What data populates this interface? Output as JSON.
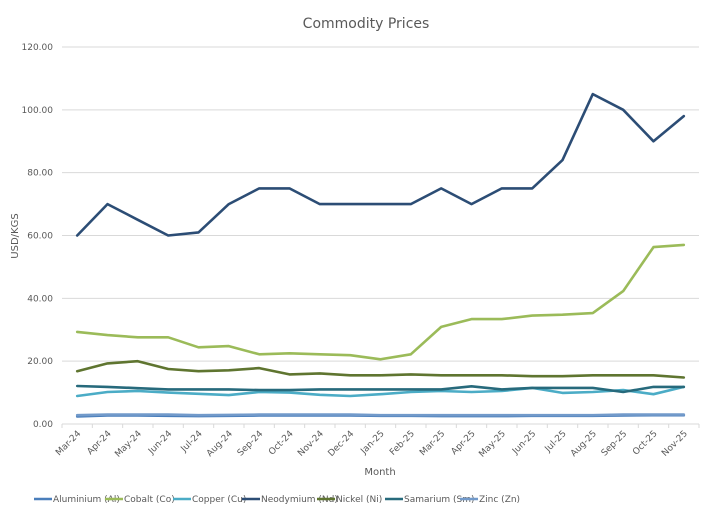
{
  "chart_data": {
    "type": "line",
    "title": "Commodity Prices",
    "xlabel": "Month",
    "ylabel": "USD/KGS",
    "ylim": [
      0,
      120
    ],
    "yticks": [
      "0.00",
      "20.00",
      "40.00",
      "60.00",
      "80.00",
      "100.00",
      "120.00"
    ],
    "ytick_values": [
      0,
      20,
      40,
      60,
      80,
      100,
      120
    ],
    "grid": true,
    "legend_position": "bottom",
    "categories": [
      "Mar-24",
      "Apr-24",
      "May-24",
      "Jun-24",
      "Jul-24",
      "Aug-24",
      "Sep-24",
      "Oct-24",
      "Nov-24",
      "Dec-24",
      "Jan-25",
      "Feb-25",
      "Mar-25",
      "Apr-25",
      "May-25",
      "Jun-25",
      "Jul-25",
      "Aug-25",
      "Sep-25",
      "Oct-25",
      "Nov-25"
    ],
    "series": [
      {
        "name": "Aluminium (Al)",
        "color": "#4a7ebb",
        "values": [
          2.4,
          2.7,
          2.7,
          2.6,
          2.5,
          2.6,
          2.7,
          2.7,
          2.7,
          2.7,
          2.6,
          2.6,
          2.5,
          2.5,
          2.5,
          2.6,
          2.6,
          2.6,
          2.7,
          2.8,
          2.8
        ]
      },
      {
        "name": "Cobalt (Co)",
        "color": "#9bbb59",
        "values": [
          29.3,
          28.3,
          27.6,
          27.6,
          24.4,
          24.8,
          22.2,
          22.5,
          22.2,
          21.9,
          20.6,
          22.2,
          30.9,
          33.4,
          33.4,
          34.5,
          34.8,
          35.3,
          42.3,
          56.3,
          57.0
        ]
      },
      {
        "name": "Copper (Cu)",
        "color": "#4bacc6",
        "values": [
          8.9,
          10.2,
          10.5,
          10.0,
          9.6,
          9.2,
          10.2,
          10.0,
          9.3,
          8.9,
          9.5,
          10.2,
          10.5,
          10.2,
          10.5,
          11.5,
          9.9,
          10.2,
          10.8,
          9.5,
          11.8
        ]
      },
      {
        "name": "Neodymium (Nd)",
        "color": "#2c4d75",
        "values": [
          60,
          70,
          65,
          60,
          61,
          70,
          75,
          75,
          70,
          70,
          70,
          70,
          75,
          70,
          75,
          75,
          84,
          105,
          100,
          90,
          98
        ]
      },
      {
        "name": "Nickel (Ni)",
        "color": "#5f7530",
        "values": [
          16.8,
          19.3,
          20.0,
          17.5,
          16.8,
          17.1,
          17.8,
          15.8,
          16.1,
          15.5,
          15.5,
          15.8,
          15.5,
          15.5,
          15.5,
          15.2,
          15.2,
          15.5,
          15.5,
          15.5,
          14.8
        ]
      },
      {
        "name": "Samarium (Sm)",
        "color": "#276a7c",
        "values": [
          12.1,
          11.8,
          11.4,
          11.0,
          11.0,
          11.0,
          10.8,
          10.8,
          11.0,
          11.0,
          11.0,
          11.0,
          11.0,
          12.0,
          11.0,
          11.5,
          11.5,
          11.5,
          10.2,
          11.8,
          11.8
        ]
      },
      {
        "name": "Zinc (Zn)",
        "color": "#729aca",
        "values": [
          2.8,
          3.0,
          3.0,
          3.0,
          2.8,
          2.9,
          3.0,
          3.0,
          3.0,
          3.0,
          2.8,
          2.8,
          2.8,
          2.8,
          2.8,
          2.8,
          2.8,
          2.8,
          3.0,
          3.0,
          3.0
        ]
      }
    ]
  }
}
